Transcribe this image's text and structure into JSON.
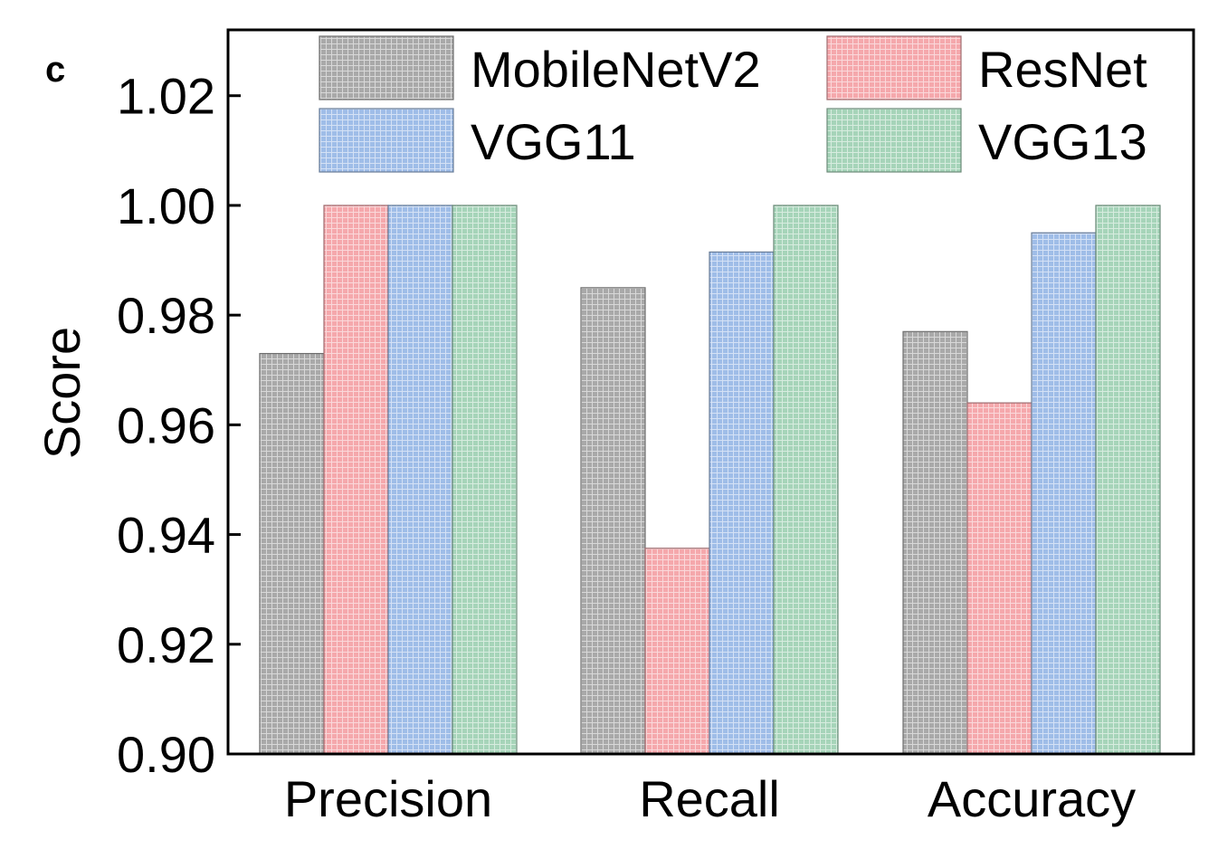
{
  "panel_label": "c",
  "chart_data": {
    "type": "bar",
    "categories": [
      "Precision",
      "Recall",
      "Accuracy"
    ],
    "series": [
      {
        "name": "MobileNetV2",
        "color": "#a9a9a9",
        "values": [
          0.973,
          0.985,
          0.977
        ]
      },
      {
        "name": "ResNet",
        "color": "#f5a8ac",
        "values": [
          1.0,
          0.9375,
          0.964
        ]
      },
      {
        "name": "VGG11",
        "color": "#9fbde8",
        "values": [
          1.0,
          0.9915,
          0.995
        ]
      },
      {
        "name": "VGG13",
        "color": "#a6d4b9",
        "values": [
          1.0,
          1.0,
          1.0
        ]
      }
    ],
    "xlabel": "",
    "ylabel": "Score",
    "ylim": [
      0.9,
      1.032
    ],
    "yticks": [
      "0.90",
      "0.92",
      "0.94",
      "0.96",
      "0.98",
      "1.00",
      "1.02"
    ],
    "grid": false,
    "legend_position": "top"
  }
}
